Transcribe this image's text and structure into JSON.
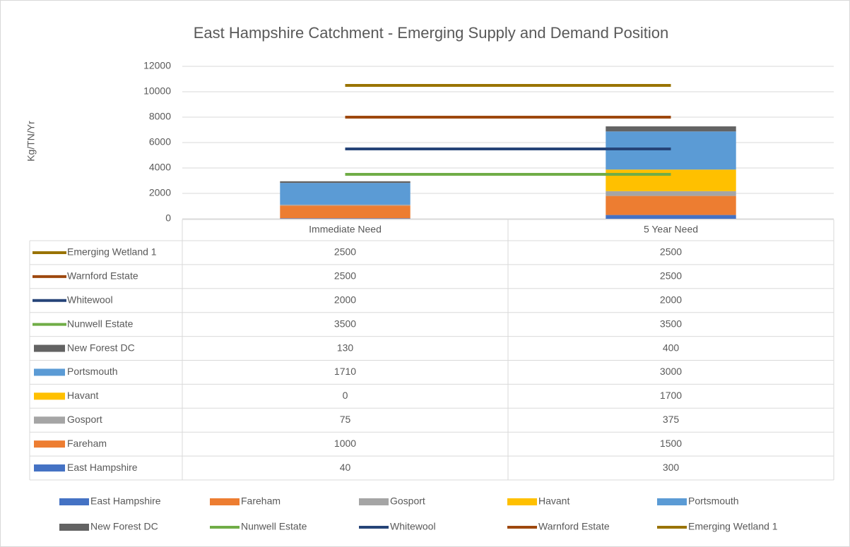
{
  "chart_data": {
    "type": "bar",
    "stacked": true,
    "title": "East Hampshire Catchment - Emerging Supply and Demand Position",
    "y_label": "Kg/TN/Yr",
    "categories": [
      "Immediate Need",
      "5 Year Need"
    ],
    "ylim": [
      0,
      12000
    ],
    "yticks": [
      0,
      2000,
      4000,
      6000,
      8000,
      10000,
      12000
    ],
    "grid": true,
    "data_table": true,
    "legend": "bottom",
    "series": [
      {
        "name": "East Hampshire",
        "color": "#4472c4",
        "type": "bar",
        "values": [
          40,
          300
        ]
      },
      {
        "name": "Fareham",
        "color": "#ed7d31",
        "type": "bar",
        "values": [
          1000,
          1500
        ]
      },
      {
        "name": "Gosport",
        "color": "#a5a5a5",
        "type": "bar",
        "values": [
          75,
          375
        ]
      },
      {
        "name": "Havant",
        "color": "#ffc000",
        "type": "bar",
        "values": [
          0,
          1700
        ]
      },
      {
        "name": "Portsmouth",
        "color": "#5b9bd5",
        "type": "bar",
        "values": [
          1710,
          3000
        ]
      },
      {
        "name": "New Forest DC",
        "color": "#636363",
        "type": "bar",
        "values": [
          130,
          400
        ]
      },
      {
        "name": "Nunwell Estate",
        "color": "#70ad47",
        "type": "line",
        "values": [
          3500,
          3500
        ]
      },
      {
        "name": "Whitewool",
        "color": "#264478",
        "type": "line",
        "values": [
          2000,
          2000
        ]
      },
      {
        "name": "Warnford Estate",
        "color": "#9e480e",
        "type": "line",
        "values": [
          2500,
          2500
        ]
      },
      {
        "name": "Emerging Wetland 1",
        "color": "#997300",
        "type": "line",
        "values": [
          2500,
          2500
        ]
      }
    ]
  }
}
